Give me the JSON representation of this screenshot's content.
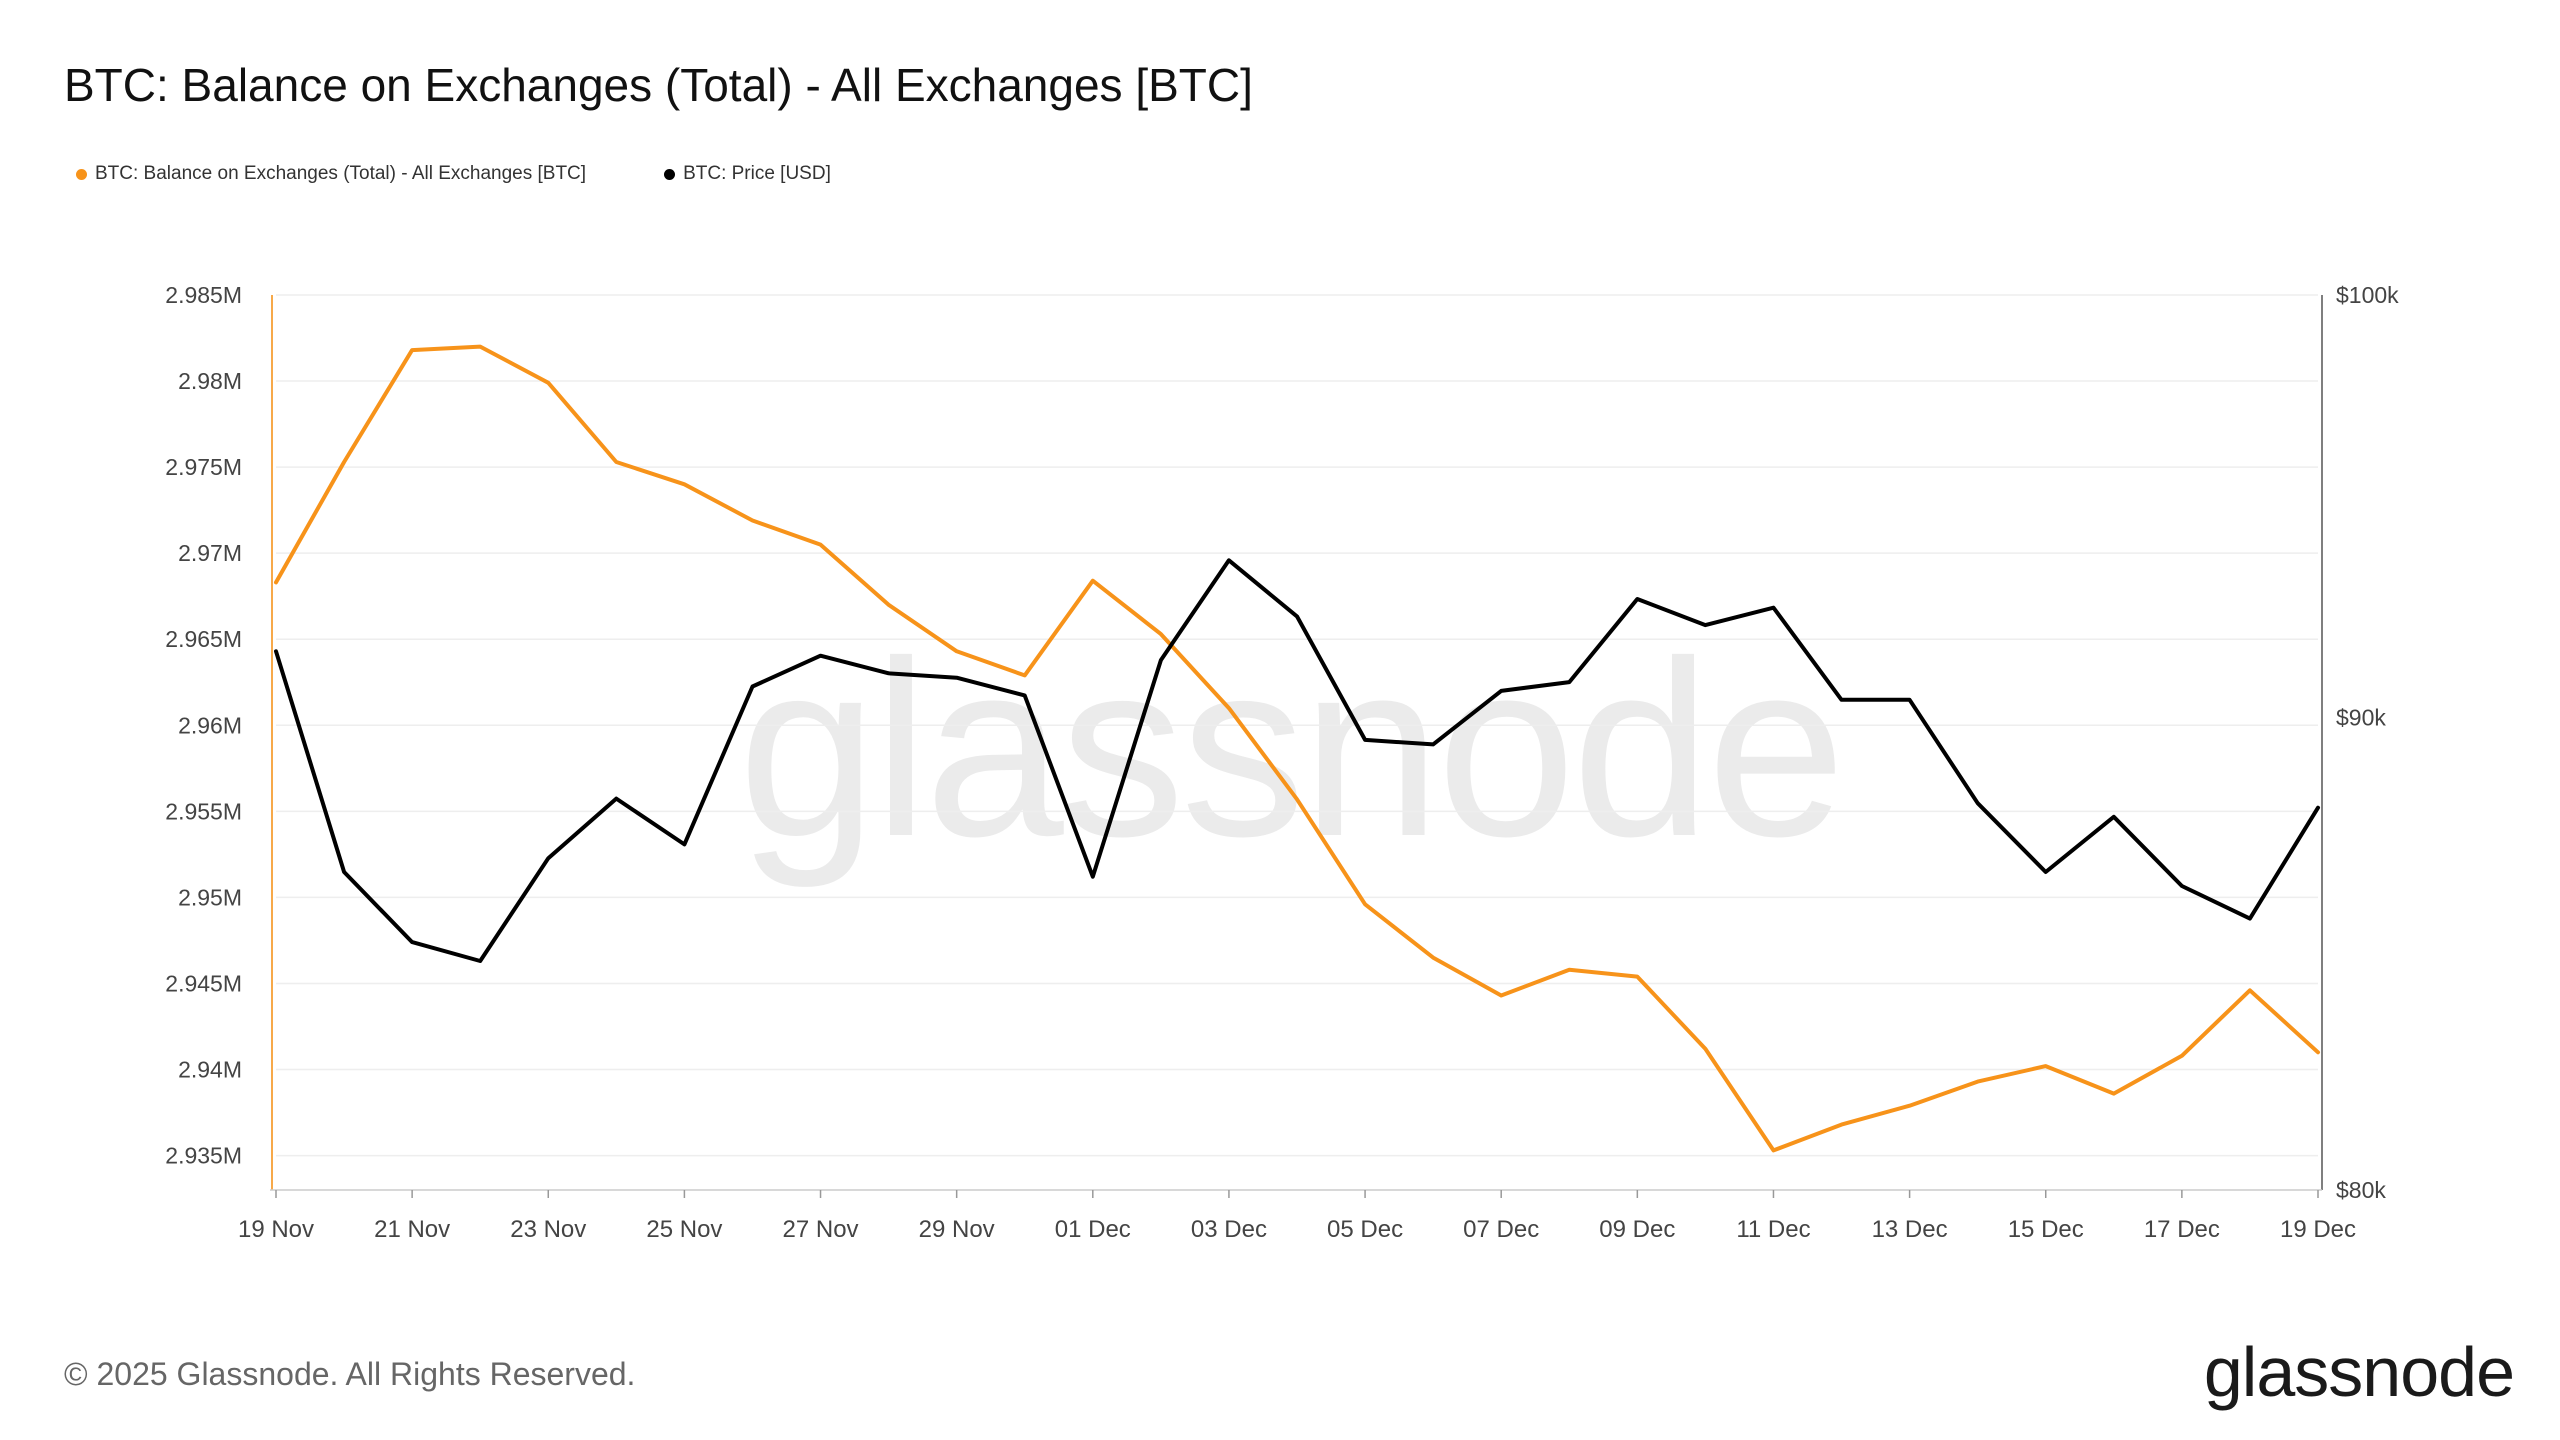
{
  "chart_data": {
    "type": "line",
    "title": "BTC: Balance on Exchanges (Total) - All Exchanges [BTC]",
    "x": [
      "2024-11-19",
      "2024-11-20",
      "2024-11-21",
      "2024-11-22",
      "2024-11-23",
      "2024-11-24",
      "2024-11-25",
      "2024-11-26",
      "2024-11-27",
      "2024-11-28",
      "2024-11-29",
      "2024-11-30",
      "2024-12-01",
      "2024-12-02",
      "2024-12-03",
      "2024-12-04",
      "2024-12-05",
      "2024-12-06",
      "2024-12-07",
      "2024-12-08",
      "2024-12-09",
      "2024-12-10",
      "2024-12-11",
      "2024-12-12",
      "2024-12-13",
      "2024-12-14",
      "2024-12-15",
      "2024-12-16",
      "2024-12-17",
      "2024-12-18",
      "2024-12-19"
    ],
    "x_tick_labels": [
      "19 Nov",
      "21 Nov",
      "23 Nov",
      "25 Nov",
      "27 Nov",
      "29 Nov",
      "01 Dec",
      "03 Dec",
      "05 Dec",
      "07 Dec",
      "09 Dec",
      "11 Dec",
      "13 Dec",
      "15 Dec",
      "17 Dec",
      "19 Dec"
    ],
    "y_left": {
      "ticks": [
        2935000,
        2940000,
        2945000,
        2950000,
        2955000,
        2960000,
        2965000,
        2970000,
        2975000,
        2980000,
        2985000
      ],
      "tick_labels": [
        "2.935M",
        "2.94M",
        "2.945M",
        "2.95M",
        "2.955M",
        "2.96M",
        "2.965M",
        "2.97M",
        "2.975M",
        "2.98M",
        "2.985M"
      ],
      "range": [
        2933000,
        2985000
      ]
    },
    "y_right": {
      "scale": "log",
      "ticks": [
        80000,
        90000,
        100000
      ],
      "tick_labels": [
        "$80k",
        "$90k",
        "$100k"
      ],
      "range": [
        80000,
        100000
      ]
    },
    "grid": true,
    "legend_position": "top-left",
    "series": [
      {
        "name": "BTC: Balance on Exchanges (Total) - All Exchanges [BTC]",
        "axis": "left",
        "color": "#f7931a",
        "values": [
          2968300,
          2975300,
          2981800,
          2982000,
          2979900,
          2975300,
          2974000,
          2971900,
          2970500,
          2967000,
          2964300,
          2962900,
          2968400,
          2965300,
          2961000,
          2955700,
          2949600,
          2946500,
          2944300,
          2945800,
          2945400,
          2941200,
          2935300,
          2936800,
          2937900,
          2939300,
          2940200,
          2938600,
          2940800,
          2944600,
          2941000
        ]
      },
      {
        "name": "BTC: Price [USD]",
        "axis": "right",
        "color": "#000000",
        "values": [
          91500,
          86600,
          85100,
          84700,
          86900,
          88200,
          87200,
          90700,
          91400,
          91000,
          90900,
          90500,
          86500,
          91300,
          93600,
          92300,
          89500,
          89400,
          90600,
          90800,
          92700,
          92100,
          92500,
          90400,
          90400,
          88100,
          86600,
          87800,
          86300,
          85600,
          88000
        ]
      }
    ]
  },
  "footer": {
    "copyright": "© 2025 Glassnode. All Rights Reserved.",
    "brand": "glassnode"
  },
  "watermark": "glassnode"
}
